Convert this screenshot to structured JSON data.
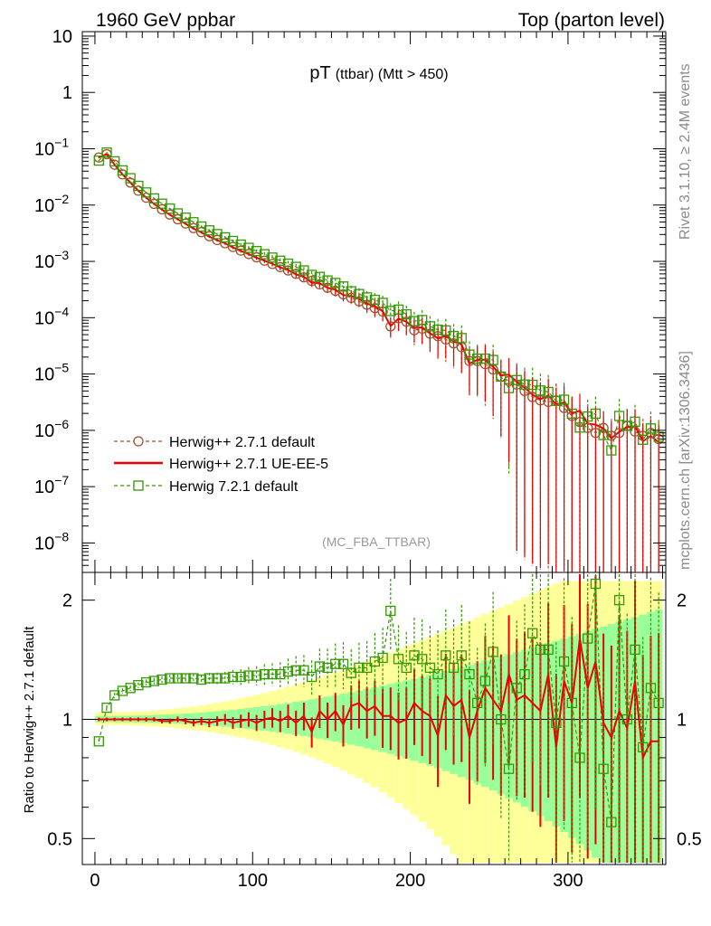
{
  "header": {
    "left": "1960 GeV ppbar",
    "right": "Top (parton level)"
  },
  "side_labels": {
    "rivet": "Rivet 3.1.10, ≥ 2.4M events",
    "mcplots": "mcplots.cern.ch [arXiv:1306.3436]"
  },
  "chart_data": [
    {
      "type": "scatter",
      "title_main": "pT",
      "title_sub": "(ttbar) (Mtt > 450)",
      "watermark": "(MC_FBA_TTBAR)",
      "yscale": "log",
      "ylim": [
        3e-09,
        12
      ],
      "xlim": [
        -8,
        362
      ],
      "grid": false,
      "legend_position": "bottom-left",
      "y_ticks": [
        {
          "value": 10,
          "label": "10"
        },
        {
          "value": 1,
          "label": "1"
        },
        {
          "value": 0.1,
          "label": "10",
          "exp": "−1"
        },
        {
          "value": 0.01,
          "label": "10",
          "exp": "−2"
        },
        {
          "value": 0.001,
          "label": "10",
          "exp": "−3"
        },
        {
          "value": 0.0001,
          "label": "10",
          "exp": "−4"
        },
        {
          "value": 1e-05,
          "label": "10",
          "exp": "−5"
        },
        {
          "value": 1e-06,
          "label": "10",
          "exp": "−6"
        },
        {
          "value": 1e-07,
          "label": "10",
          "exp": "−7"
        },
        {
          "value": 1e-08,
          "label": "10",
          "exp": "−8"
        }
      ],
      "x": [
        2.5,
        7.5,
        12.5,
        17.5,
        22.5,
        27.5,
        32.5,
        37.5,
        42.5,
        47.5,
        52.5,
        57.5,
        62.5,
        67.5,
        72.5,
        77.5,
        82.5,
        87.5,
        92.5,
        97.5,
        102.5,
        107.5,
        112.5,
        117.5,
        122.5,
        127.5,
        132.5,
        137.5,
        142.5,
        147.5,
        152.5,
        157.5,
        162.5,
        167.5,
        172.5,
        177.5,
        182.5,
        187.5,
        192.5,
        197.5,
        202.5,
        207.5,
        212.5,
        217.5,
        222.5,
        227.5,
        232.5,
        237.5,
        242.5,
        247.5,
        252.5,
        257.5,
        262.5,
        267.5,
        272.5,
        277.5,
        282.5,
        287.5,
        292.5,
        297.5,
        302.5,
        307.5,
        312.5,
        317.5,
        322.5,
        327.5,
        332.5,
        337.5,
        342.5,
        347.5,
        352.5,
        357.5
      ],
      "series": [
        {
          "name": "Herwig++ 2.7.1 default",
          "color": "#a0522d",
          "style": "dashed",
          "marker": "circle",
          "values": [
            0.07,
            0.08,
            0.052,
            0.035,
            0.025,
            0.018,
            0.0135,
            0.0105,
            0.0084,
            0.0068,
            0.0056,
            0.0047,
            0.0039,
            0.0033,
            0.0028,
            0.0024,
            0.0021,
            0.0018,
            0.00155,
            0.00135,
            0.00118,
            0.00103,
            0.0009,
            0.00079,
            0.00069,
            0.0006,
            0.00052,
            0.00045,
            0.00039,
            0.00034,
            0.0003,
            0.00026,
            0.000225,
            0.000195,
            0.00017,
            0.000148,
            0.000128,
            7e-05,
            9.8e-05,
            8.5e-05,
            6e-05,
            6.4e-05,
            5.2e-05,
            4.7e-05,
            4.1e-05,
            3.5e-05,
            3e-05,
            1.7e-05,
            1.7e-05,
            1.5e-05,
            1.2e-05,
            9e-06,
            7.5e-06,
            6.5e-06,
            5e-06,
            3.9e-06,
            3.4e-06,
            3.2e-06,
            3.4e-06,
            2.5e-06,
            1.8e-06,
            1.4e-06,
            1.1e-06,
            9e-07,
            1.1e-06,
            8e-07,
            9e-07,
            1.2e-06,
            9.5e-07,
            8e-07,
            9e-07,
            7e-07
          ]
        },
        {
          "name": "Herwig++ 2.7.1 UE-EE-5",
          "color": "#ee0000",
          "style": "solid",
          "marker": "none",
          "ratio": [
            1.0,
            1.0,
            1.0,
            1.0,
            1.0,
            1.0,
            1.0,
            1.0,
            0.99,
            0.99,
            1.0,
            0.99,
            0.98,
            0.99,
            0.98,
            0.99,
            1.0,
            0.98,
            0.99,
            1.0,
            0.98,
            1.0,
            1.01,
            0.99,
            1.02,
            0.98,
            1.02,
            0.93,
            1.05,
            1.0,
            1.05,
            0.97,
            1.08,
            1.1,
            1.05,
            1.08,
            1.02,
            1.02,
            0.98,
            1.0,
            1.1,
            1.05,
            1.02,
            0.91,
            1.15,
            1.08,
            1.12,
            0.9,
            1.05,
            1.2,
            1.12,
            1.05,
            1.3,
            1.12,
            1.15,
            1.1,
            1.05,
            1.3,
            0.85,
            1.25,
            1.1,
            1.6,
            1.2,
            1.4,
            0.98,
            0.9,
            1.05,
            0.95,
            1.25,
            0.8,
            0.88,
            0.88
          ]
        },
        {
          "name": "Herwig 7.2.1 default",
          "color": "#339900",
          "style": "dashed",
          "marker": "square",
          "ratio": [
            0.88,
            1.07,
            1.15,
            1.18,
            1.2,
            1.22,
            1.24,
            1.25,
            1.26,
            1.27,
            1.27,
            1.27,
            1.27,
            1.26,
            1.27,
            1.27,
            1.27,
            1.28,
            1.28,
            1.29,
            1.29,
            1.3,
            1.3,
            1.3,
            1.32,
            1.33,
            1.33,
            1.28,
            1.36,
            1.35,
            1.38,
            1.38,
            1.31,
            1.35,
            1.35,
            1.4,
            1.43,
            1.88,
            1.42,
            1.35,
            1.45,
            1.42,
            1.35,
            1.3,
            1.45,
            1.35,
            1.45,
            1.3,
            1.1,
            1.25,
            1.48,
            1.0,
            0.75,
            1.2,
            1.3,
            1.65,
            1.5,
            1.5,
            0.98,
            1.4,
            1.1,
            0.8,
            1.6,
            2.2,
            0.75,
            0.55,
            2.0,
            1.0,
            1.5,
            0.85,
            1.2,
            1.1
          ]
        }
      ]
    },
    {
      "type": "line",
      "ylabel": "Ratio to Herwig++ 2.7.1 default",
      "xlabel": "",
      "yscale": "log",
      "ylim": [
        0.43,
        2.35
      ],
      "xlim": [
        -8,
        362
      ],
      "reference_line": 1,
      "y_ticks": [
        {
          "value": 0.5,
          "label": "0.5"
        },
        {
          "value": 1,
          "label": "1"
        },
        {
          "value": 2,
          "label": "2"
        }
      ],
      "x_ticks": [
        {
          "value": 0,
          "label": "0"
        },
        {
          "value": 100,
          "label": "100"
        },
        {
          "value": 200,
          "label": "200"
        },
        {
          "value": 300,
          "label": "300"
        }
      ],
      "band_colors": {
        "inner": "#99ff99",
        "outer": "#ffff99"
      }
    }
  ]
}
